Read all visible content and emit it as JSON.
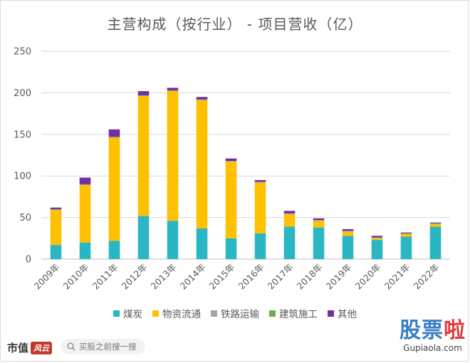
{
  "chart_data": {
    "type": "bar",
    "stacked": true,
    "title": "主营构成（按行业） - 项目营收（亿）",
    "categories": [
      "2009年",
      "2010年",
      "2011年",
      "2012年",
      "2013年",
      "2014年",
      "2015年",
      "2016年",
      "2017年",
      "2018年",
      "2019年",
      "2020年",
      "2021年",
      "2022年"
    ],
    "series": [
      {
        "name": "煤炭",
        "color": "#2ab7c3",
        "values": [
          17,
          20,
          22,
          52,
          46,
          37,
          25,
          31,
          39,
          38,
          28,
          23,
          27,
          39
        ]
      },
      {
        "name": "物资流通",
        "color": "#ffc000",
        "values": [
          42,
          69,
          124,
          144,
          156,
          154,
          92,
          61,
          15,
          8,
          5,
          2,
          3,
          3
        ]
      },
      {
        "name": "铁路运输",
        "color": "#a5a5a5",
        "values": [
          0.5,
          0.5,
          0.5,
          0.5,
          0.5,
          0.5,
          0.5,
          0.5,
          0.5,
          0.5,
          0.5,
          0.5,
          0.5,
          0.5
        ]
      },
      {
        "name": "建筑施工",
        "color": "#70ad47",
        "values": [
          0.5,
          0.5,
          0.5,
          0.5,
          0.5,
          0.5,
          0.5,
          0.5,
          0.5,
          0.5,
          0.5,
          0.5,
          0.5,
          0.5
        ]
      },
      {
        "name": "其他",
        "color": "#7030a0",
        "values": [
          2,
          8,
          9,
          5,
          3,
          3,
          3,
          2,
          3,
          2,
          2,
          2,
          1,
          1
        ]
      }
    ],
    "yticks": [
      0,
      50,
      100,
      150,
      200,
      250
    ],
    "ylim": [
      0,
      250
    ],
    "grid": true,
    "legend_position": "bottom"
  },
  "footer": {
    "brand": "市值",
    "brand_logo": "风云",
    "search_placeholder": "买股之前搜一搜",
    "search_icon": "search-icon",
    "corner_logo_part1": "股票",
    "corner_logo_part2": "啦",
    "corner_logo_url": "Gupiaola.com"
  }
}
